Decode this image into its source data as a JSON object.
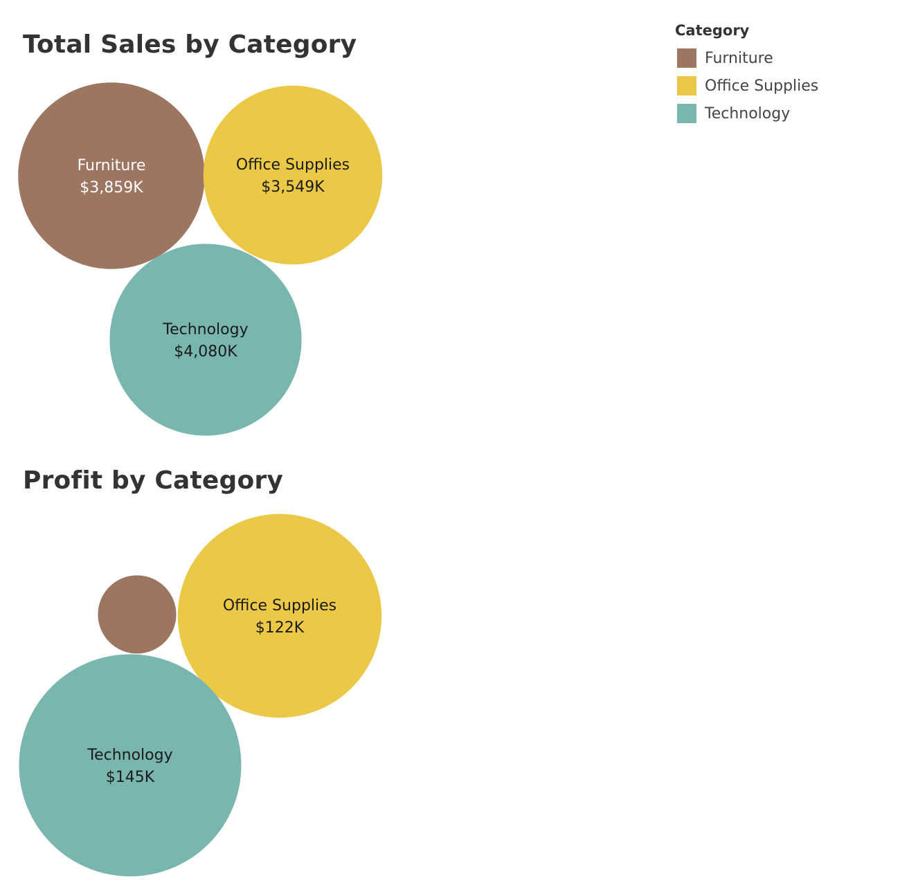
{
  "legend": {
    "title": "Category",
    "items": [
      {
        "label": "Furniture",
        "color": "#9c7660"
      },
      {
        "label": "Office Supplies",
        "color": "#ebc947"
      },
      {
        "label": "Technology",
        "color": "#7ab6b0"
      }
    ]
  },
  "chart_data": [
    {
      "type": "bubble",
      "title": "Total Sales by Category",
      "measure": "Sales",
      "bubbles": [
        {
          "category": "Furniture",
          "value": 3859,
          "label": "$3,859K",
          "color": "#9c7660",
          "label_color": "#ffffff"
        },
        {
          "category": "Office Supplies",
          "value": 3549,
          "label": "$3,549K",
          "color": "#ebc947",
          "label_color": "#1a1a1a"
        },
        {
          "category": "Technology",
          "value": 4080,
          "label": "$4,080K",
          "color": "#7ab6b0",
          "label_color": "#1a1a1a"
        }
      ]
    },
    {
      "type": "bubble",
      "title": "Profit by Category",
      "measure": "Profit",
      "bubbles": [
        {
          "category": "Furniture",
          "value": 18,
          "label": "",
          "color": "#9c7660",
          "label_color": "#ffffff"
        },
        {
          "category": "Office Supplies",
          "value": 122,
          "label": "$122K",
          "color": "#ebc947",
          "label_color": "#1a1a1a"
        },
        {
          "category": "Technology",
          "value": 145,
          "label": "$145K",
          "color": "#7ab6b0",
          "label_color": "#1a1a1a"
        }
      ]
    }
  ]
}
